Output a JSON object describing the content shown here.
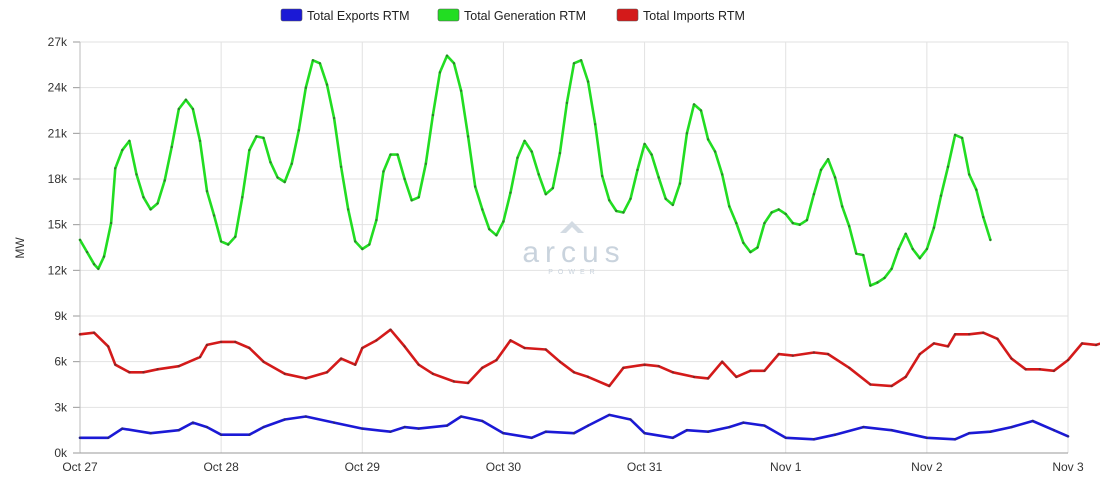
{
  "watermark": {
    "text": "arcus",
    "subtext": "POWER"
  },
  "chart_data": {
    "type": "line",
    "title": "",
    "xlabel": "",
    "ylabel": "MW",
    "ylim": [
      0,
      27000
    ],
    "yticks": [
      {
        "value": 0,
        "label": "0k"
      },
      {
        "value": 3000,
        "label": "3k"
      },
      {
        "value": 6000,
        "label": "6k"
      },
      {
        "value": 9000,
        "label": "9k"
      },
      {
        "value": 12000,
        "label": "12k"
      },
      {
        "value": 15000,
        "label": "15k"
      },
      {
        "value": 18000,
        "label": "18k"
      },
      {
        "value": 21000,
        "label": "21k"
      },
      {
        "value": 24000,
        "label": "24k"
      },
      {
        "value": 27000,
        "label": "27k"
      }
    ],
    "xlim": [
      0,
      7
    ],
    "xticks": [
      {
        "value": 0,
        "label": "Oct 27"
      },
      {
        "value": 1,
        "label": "Oct 28"
      },
      {
        "value": 2,
        "label": "Oct 29"
      },
      {
        "value": 3,
        "label": "Oct 30"
      },
      {
        "value": 4,
        "label": "Oct 31"
      },
      {
        "value": 5,
        "label": "Nov 1"
      },
      {
        "value": 6,
        "label": "Nov 2"
      },
      {
        "value": 7,
        "label": "Nov 3"
      }
    ],
    "grid": true,
    "legend_position": "top-center",
    "series": [
      {
        "name": "Total Exports RTM",
        "color": "#1b19d6",
        "points": [
          [
            0,
            1000
          ],
          [
            0.2,
            1000
          ],
          [
            0.3,
            1600
          ],
          [
            0.5,
            1300
          ],
          [
            0.7,
            1500
          ],
          [
            0.8,
            2000
          ],
          [
            0.9,
            1700
          ],
          [
            1,
            1200
          ],
          [
            1.2,
            1200
          ],
          [
            1.3,
            1700
          ],
          [
            1.45,
            2200
          ],
          [
            1.6,
            2400
          ],
          [
            1.8,
            2000
          ],
          [
            2,
            1600
          ],
          [
            2.2,
            1400
          ],
          [
            2.3,
            1700
          ],
          [
            2.4,
            1600
          ],
          [
            2.6,
            1800
          ],
          [
            2.7,
            2400
          ],
          [
            2.85,
            2100
          ],
          [
            3,
            1300
          ],
          [
            3.2,
            1000
          ],
          [
            3.3,
            1400
          ],
          [
            3.5,
            1300
          ],
          [
            3.6,
            1800
          ],
          [
            3.75,
            2500
          ],
          [
            3.9,
            2200
          ],
          [
            4,
            1300
          ],
          [
            4.2,
            1000
          ],
          [
            4.3,
            1500
          ],
          [
            4.45,
            1400
          ],
          [
            4.6,
            1700
          ],
          [
            4.7,
            2000
          ],
          [
            4.85,
            1800
          ],
          [
            5,
            1000
          ],
          [
            5.2,
            900
          ],
          [
            5.35,
            1200
          ],
          [
            5.55,
            1700
          ],
          [
            5.75,
            1500
          ],
          [
            6,
            1000
          ],
          [
            6.2,
            900
          ],
          [
            6.3,
            1300
          ],
          [
            6.45,
            1400
          ],
          [
            6.6,
            1700
          ],
          [
            6.75,
            2100
          ],
          [
            6.9,
            1500
          ],
          [
            7,
            1100
          ]
        ]
      },
      {
        "name": "Total Generation RTM",
        "color": "#22dd22",
        "points": [
          [
            0,
            14000
          ],
          [
            0.05,
            13200
          ],
          [
            0.1,
            12400
          ],
          [
            0.13,
            12100
          ],
          [
            0.17,
            12900
          ],
          [
            0.22,
            15100
          ],
          [
            0.25,
            18700
          ],
          [
            0.3,
            19900
          ],
          [
            0.35,
            20500
          ],
          [
            0.4,
            18300
          ],
          [
            0.45,
            16800
          ],
          [
            0.5,
            16000
          ],
          [
            0.55,
            16400
          ],
          [
            0.6,
            17900
          ],
          [
            0.65,
            20100
          ],
          [
            0.7,
            22600
          ],
          [
            0.75,
            23200
          ],
          [
            0.8,
            22600
          ],
          [
            0.85,
            20500
          ],
          [
            0.9,
            17200
          ],
          [
            0.95,
            15600
          ],
          [
            1,
            13900
          ],
          [
            1.05,
            13700
          ],
          [
            1.1,
            14200
          ],
          [
            1.15,
            16800
          ],
          [
            1.2,
            19900
          ],
          [
            1.25,
            20800
          ],
          [
            1.3,
            20700
          ],
          [
            1.35,
            19100
          ],
          [
            1.4,
            18100
          ],
          [
            1.45,
            17800
          ],
          [
            1.5,
            19000
          ],
          [
            1.55,
            21200
          ],
          [
            1.6,
            24000
          ],
          [
            1.65,
            25800
          ],
          [
            1.7,
            25600
          ],
          [
            1.75,
            24200
          ],
          [
            1.8,
            22000
          ],
          [
            1.85,
            18800
          ],
          [
            1.9,
            16000
          ],
          [
            1.95,
            13900
          ],
          [
            2,
            13400
          ],
          [
            2.05,
            13700
          ],
          [
            2.1,
            15300
          ],
          [
            2.15,
            18500
          ],
          [
            2.2,
            19600
          ],
          [
            2.25,
            19600
          ],
          [
            2.3,
            18000
          ],
          [
            2.35,
            16600
          ],
          [
            2.4,
            16800
          ],
          [
            2.45,
            19000
          ],
          [
            2.5,
            22200
          ],
          [
            2.55,
            25000
          ],
          [
            2.6,
            26100
          ],
          [
            2.65,
            25600
          ],
          [
            2.7,
            23800
          ],
          [
            2.75,
            20800
          ],
          [
            2.8,
            17500
          ],
          [
            2.85,
            16000
          ],
          [
            2.9,
            14700
          ],
          [
            2.95,
            14300
          ],
          [
            3,
            15200
          ],
          [
            3.05,
            17100
          ],
          [
            3.1,
            19400
          ],
          [
            3.15,
            20500
          ],
          [
            3.2,
            19800
          ],
          [
            3.25,
            18300
          ],
          [
            3.3,
            17000
          ],
          [
            3.35,
            17400
          ],
          [
            3.4,
            19700
          ],
          [
            3.45,
            23000
          ],
          [
            3.5,
            25600
          ],
          [
            3.55,
            25800
          ],
          [
            3.6,
            24400
          ],
          [
            3.65,
            21600
          ],
          [
            3.7,
            18200
          ],
          [
            3.75,
            16600
          ],
          [
            3.8,
            15900
          ],
          [
            3.85,
            15800
          ],
          [
            3.9,
            16700
          ],
          [
            3.95,
            18600
          ],
          [
            4,
            20300
          ],
          [
            4.05,
            19600
          ],
          [
            4.1,
            18100
          ],
          [
            4.15,
            16700
          ],
          [
            4.2,
            16300
          ],
          [
            4.25,
            17700
          ],
          [
            4.3,
            21000
          ],
          [
            4.35,
            22900
          ],
          [
            4.4,
            22500
          ],
          [
            4.45,
            20600
          ],
          [
            4.5,
            19800
          ],
          [
            4.55,
            18300
          ],
          [
            4.6,
            16200
          ],
          [
            4.65,
            15100
          ],
          [
            4.7,
            13800
          ],
          [
            4.75,
            13200
          ],
          [
            4.8,
            13500
          ],
          [
            4.85,
            15100
          ],
          [
            4.9,
            15800
          ],
          [
            4.95,
            16000
          ],
          [
            5,
            15700
          ],
          [
            5.05,
            15100
          ],
          [
            5.1,
            15000
          ],
          [
            5.15,
            15300
          ],
          [
            5.2,
            17000
          ],
          [
            5.25,
            18600
          ],
          [
            5.3,
            19300
          ],
          [
            5.35,
            18100
          ],
          [
            5.4,
            16200
          ],
          [
            5.45,
            14900
          ],
          [
            5.5,
            13100
          ],
          [
            5.55,
            13000
          ],
          [
            5.6,
            11000
          ],
          [
            5.65,
            11200
          ],
          [
            5.7,
            11500
          ],
          [
            5.75,
            12100
          ],
          [
            5.8,
            13400
          ],
          [
            5.85,
            14400
          ],
          [
            5.9,
            13400
          ],
          [
            5.95,
            12800
          ],
          [
            6,
            13400
          ],
          [
            6.05,
            14800
          ],
          [
            6.1,
            16900
          ],
          [
            6.15,
            18800
          ],
          [
            6.2,
            20900
          ],
          [
            6.25,
            20700
          ],
          [
            6.3,
            18300
          ],
          [
            6.35,
            17300
          ],
          [
            6.4,
            15500
          ],
          [
            6.45,
            14000
          ]
        ]
      },
      {
        "name": "Total Imports RTM",
        "color": "#d41a1a",
        "points": [
          [
            0,
            7800
          ],
          [
            0.1,
            7900
          ],
          [
            0.2,
            7000
          ],
          [
            0.25,
            5800
          ],
          [
            0.35,
            5300
          ],
          [
            0.45,
            5300
          ],
          [
            0.55,
            5500
          ],
          [
            0.7,
            5700
          ],
          [
            0.85,
            6300
          ],
          [
            0.9,
            7100
          ],
          [
            1,
            7300
          ],
          [
            1.1,
            7300
          ],
          [
            1.2,
            6900
          ],
          [
            1.3,
            6000
          ],
          [
            1.45,
            5200
          ],
          [
            1.6,
            4900
          ],
          [
            1.75,
            5300
          ],
          [
            1.85,
            6200
          ],
          [
            1.95,
            5800
          ],
          [
            2,
            6900
          ],
          [
            2.1,
            7400
          ],
          [
            2.2,
            8100
          ],
          [
            2.3,
            7000
          ],
          [
            2.4,
            5800
          ],
          [
            2.5,
            5200
          ],
          [
            2.65,
            4700
          ],
          [
            2.75,
            4600
          ],
          [
            2.85,
            5600
          ],
          [
            2.95,
            6100
          ],
          [
            3.05,
            7400
          ],
          [
            3.15,
            6900
          ],
          [
            3.3,
            6800
          ],
          [
            3.4,
            6000
          ],
          [
            3.5,
            5300
          ],
          [
            3.6,
            5000
          ],
          [
            3.75,
            4400
          ],
          [
            3.85,
            5600
          ],
          [
            4,
            5800
          ],
          [
            4.1,
            5700
          ],
          [
            4.2,
            5300
          ],
          [
            4.35,
            5000
          ],
          [
            4.45,
            4900
          ],
          [
            4.55,
            6000
          ],
          [
            4.65,
            5000
          ],
          [
            4.75,
            5400
          ],
          [
            4.85,
            5400
          ],
          [
            4.95,
            6500
          ],
          [
            5.05,
            6400
          ],
          [
            5.2,
            6600
          ],
          [
            5.3,
            6500
          ],
          [
            5.45,
            5600
          ],
          [
            5.6,
            4500
          ],
          [
            5.75,
            4400
          ],
          [
            5.85,
            5000
          ],
          [
            5.95,
            6500
          ],
          [
            6.05,
            7200
          ],
          [
            6.15,
            7000
          ],
          [
            6.2,
            7800
          ],
          [
            6.3,
            7800
          ],
          [
            6.4,
            7900
          ],
          [
            6.5,
            7500
          ],
          [
            6.6,
            6200
          ],
          [
            6.7,
            5500
          ],
          [
            6.8,
            5500
          ],
          [
            6.9,
            5400
          ],
          [
            7,
            6100
          ],
          [
            7.1,
            7200
          ],
          [
            7.2,
            7100
          ],
          [
            7.3,
            7400
          ]
        ]
      }
    ]
  }
}
